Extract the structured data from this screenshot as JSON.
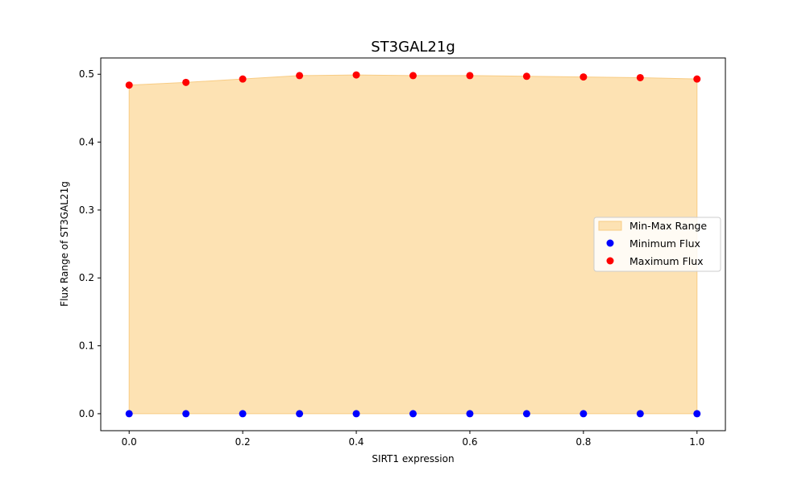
{
  "chart_data": {
    "type": "area",
    "title": "ST3GAL21g",
    "xlabel": "SIRT1 expression",
    "ylabel": "Flux Range of ST3GAL21g",
    "x": [
      0.0,
      0.1,
      0.2,
      0.3,
      0.4,
      0.5,
      0.6,
      0.7,
      0.8,
      0.9,
      1.0
    ],
    "xlim": [
      -0.05,
      1.05
    ],
    "ylim": [
      -0.025,
      0.524
    ],
    "xticks": [
      "0.0",
      "0.2",
      "0.4",
      "0.6",
      "0.8",
      "1.0"
    ],
    "yticks": [
      "0.0",
      "0.1",
      "0.2",
      "0.3",
      "0.4",
      "0.5"
    ],
    "grid": false,
    "legend_position": "center-right",
    "series": [
      {
        "name": "Min-Max Range",
        "kind": "fill_between",
        "color": "#fde2b3",
        "edge_color": "#f8cc84",
        "lower": [
          0,
          0,
          0,
          0,
          0,
          0,
          0,
          0,
          0,
          0,
          0
        ],
        "upper": [
          0.484,
          0.488,
          0.493,
          0.498,
          0.499,
          0.498,
          0.498,
          0.497,
          0.496,
          0.495,
          0.493
        ]
      },
      {
        "name": "Minimum Flux",
        "kind": "scatter",
        "color": "#0000ff",
        "values": [
          0,
          0,
          0,
          0,
          0,
          0,
          0,
          0,
          0,
          0,
          0
        ]
      },
      {
        "name": "Maximum Flux",
        "kind": "scatter",
        "color": "#ff0000",
        "values": [
          0.484,
          0.488,
          0.493,
          0.498,
          0.499,
          0.498,
          0.498,
          0.497,
          0.496,
          0.495,
          0.493
        ]
      }
    ]
  }
}
